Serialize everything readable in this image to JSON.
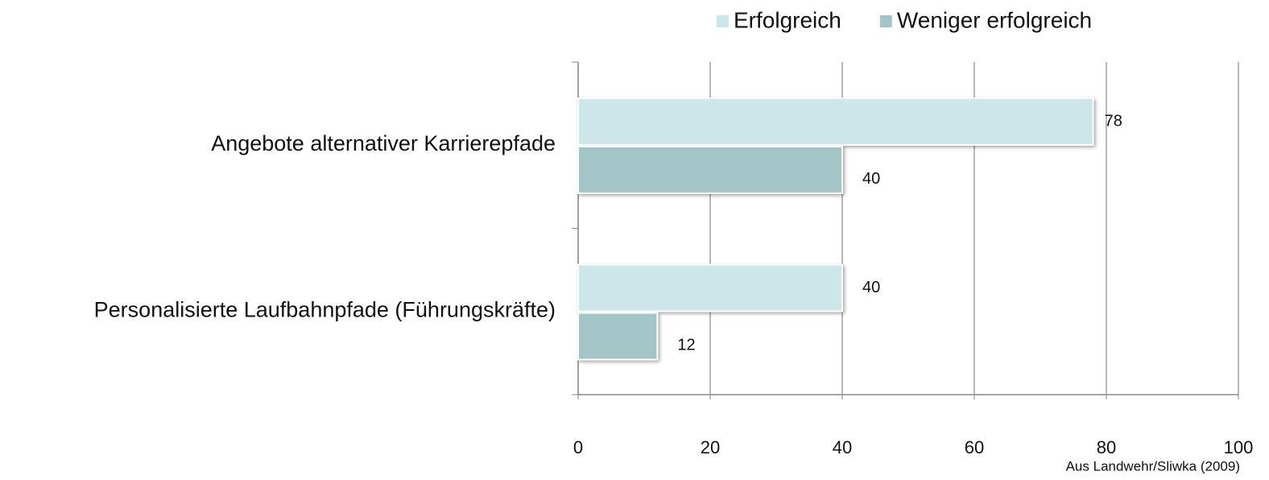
{
  "chart_data": {
    "type": "hbar",
    "categories": [
      "Angebote alternativer Karrierepfade",
      "Personalisierte Laufbahnpfade (Führungskräfte)"
    ],
    "series": [
      {
        "name": "Erfolgreich",
        "color": "#cde6ea",
        "values": [
          78,
          40
        ]
      },
      {
        "name": "Weniger erfolgreich",
        "color": "#a4c5c7",
        "values": [
          40,
          12
        ]
      }
    ],
    "xlim": [
      0,
      100
    ],
    "xticks": [
      0,
      20,
      40,
      60,
      80,
      100
    ],
    "grid": true,
    "legend": "top",
    "source": "Aus Landwehr/Sliwka (2009)"
  }
}
